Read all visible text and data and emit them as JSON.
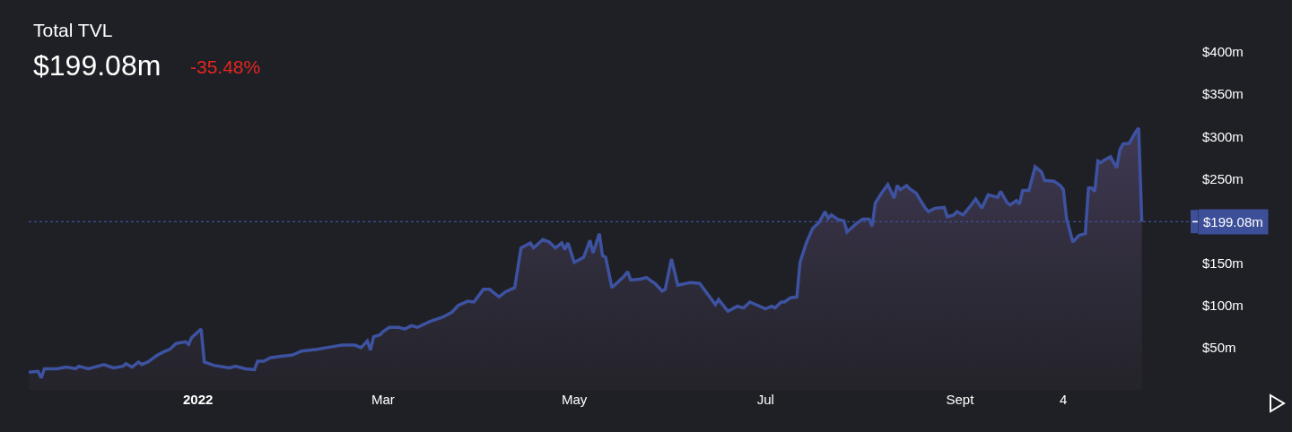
{
  "chart_data": {
    "type": "area",
    "title": "Total TVL",
    "subtitle": "$199.08m",
    "annotations": [
      "-35.48%"
    ],
    "x": [
      "2021-11-08",
      "2021-11-11",
      "2021-11-12",
      "2021-11-13",
      "2021-11-17",
      "2021-11-20",
      "2021-11-23",
      "2021-11-24",
      "2021-11-27",
      "2021-12-02",
      "2021-12-05",
      "2021-12-08",
      "2021-12-09",
      "2021-12-11",
      "2021-12-13",
      "2021-12-14",
      "2021-12-16",
      "2021-12-19",
      "2021-12-21",
      "2021-12-23",
      "2021-12-25",
      "2021-12-28",
      "2021-12-29",
      "2021-12-30",
      "2022-01-02",
      "2022-01-03",
      "2022-01-06",
      "2022-01-11",
      "2022-01-13",
      "2022-01-16",
      "2022-01-19",
      "2022-01-20",
      "2022-01-22",
      "2022-01-24",
      "2022-01-28",
      "2022-01-31",
      "2022-02-03",
      "2022-02-08",
      "2022-02-11",
      "2022-02-16",
      "2022-02-20",
      "2022-02-22",
      "2022-02-24",
      "2022-02-25",
      "2022-02-26",
      "2022-02-28",
      "2022-03-01",
      "2022-03-03",
      "2022-03-06",
      "2022-03-08",
      "2022-03-10",
      "2022-03-12",
      "2022-03-16",
      "2022-03-20",
      "2022-03-23",
      "2022-03-25",
      "2022-03-28",
      "2022-03-30",
      "2022-04-02",
      "2022-04-04",
      "2022-04-07",
      "2022-04-09",
      "2022-04-12",
      "2022-04-14",
      "2022-04-17",
      "2022-04-18",
      "2022-04-21",
      "2022-04-23",
      "2022-04-25",
      "2022-04-27",
      "2022-04-28",
      "2022-04-29",
      "2022-05-01",
      "2022-05-04",
      "2022-05-06",
      "2022-05-07",
      "2022-05-09",
      "2022-05-10",
      "2022-05-11",
      "2022-05-13",
      "2022-05-17",
      "2022-05-18",
      "2022-05-19",
      "2022-05-22",
      "2022-05-24",
      "2022-05-27",
      "2022-05-29",
      "2022-05-30",
      "2022-06-01",
      "2022-06-03",
      "2022-06-07",
      "2022-06-10",
      "2022-06-15",
      "2022-06-16",
      "2022-06-19",
      "2022-06-22",
      "2022-06-24",
      "2022-06-26",
      "2022-07-01",
      "2022-07-03",
      "2022-07-04",
      "2022-07-06",
      "2022-07-07",
      "2022-07-09",
      "2022-07-11",
      "2022-07-12",
      "2022-07-14",
      "2022-07-16",
      "2022-07-18",
      "2022-07-20",
      "2022-07-21",
      "2022-07-22",
      "2022-07-24",
      "2022-07-26",
      "2022-07-27",
      "2022-07-30",
      "2022-08-01",
      "2022-08-03",
      "2022-08-04",
      "2022-08-05",
      "2022-08-07",
      "2022-08-09",
      "2022-08-11",
      "2022-08-12",
      "2022-08-13",
      "2022-08-15",
      "2022-08-16",
      "2022-08-18",
      "2022-08-21",
      "2022-08-22",
      "2022-08-24",
      "2022-08-27",
      "2022-08-28",
      "2022-08-30",
      "2022-08-31",
      "2022-09-02",
      "2022-09-04",
      "2022-09-06",
      "2022-09-08",
      "2022-09-10",
      "2022-09-13",
      "2022-09-14",
      "2022-09-16",
      "2022-09-17",
      "2022-09-19",
      "2022-09-20",
      "2022-09-21",
      "2022-09-23",
      "2022-09-25",
      "2022-09-27",
      "2022-09-28",
      "2022-10-01",
      "2022-10-03",
      "2022-10-04",
      "2022-10-05",
      "2022-10-07",
      "2022-10-09",
      "2022-10-11",
      "2022-10-12",
      "2022-10-13",
      "2022-10-14",
      "2022-10-15",
      "2022-10-16",
      "2022-10-17",
      "2022-10-19",
      "2022-10-21",
      "2022-10-22",
      "2022-10-23",
      "2022-10-25",
      "2022-10-27",
      "2022-10-28",
      "2022-10-29"
    ],
    "series": [
      {
        "color": "#3d52a0",
        "values": [
          21,
          22,
          14,
          25,
          25,
          27,
          25,
          28,
          25,
          30,
          26,
          28,
          31,
          27,
          33,
          30,
          33,
          41,
          45,
          48,
          55,
          57,
          54,
          62,
          72,
          33,
          29,
          26,
          28,
          25,
          24,
          34,
          34,
          38,
          40,
          41,
          46,
          48,
          50,
          53,
          53,
          50,
          58,
          47,
          63,
          65,
          69,
          74,
          74,
          72,
          76,
          74,
          81,
          86,
          92,
          100,
          105,
          104,
          119,
          119,
          110,
          116,
          121,
          168,
          174,
          168,
          178,
          175,
          168,
          174,
          166,
          174,
          151,
          157,
          177,
          162,
          185,
          159,
          157,
          121,
          135,
          140,
          130,
          131,
          133,
          125,
          117,
          119,
          155,
          124,
          127,
          126,
          101,
          107,
          93,
          99,
          97,
          104,
          96,
          99,
          97,
          104,
          104,
          109,
          110,
          151,
          174,
          191,
          198,
          211,
          203,
          207,
          202,
          200,
          187,
          197,
          202,
          202,
          194,
          221,
          233,
          243,
          227,
          242,
          237,
          242,
          238,
          233,
          215,
          211,
          215,
          216,
          205,
          207,
          211,
          207,
          216,
          226,
          215,
          231,
          228,
          235,
          222,
          219,
          224,
          220,
          236,
          236,
          264,
          258,
          248,
          247,
          242,
          237,
          203,
          175,
          183,
          185,
          239,
          239,
          235,
          271,
          269,
          272,
          276,
          263,
          284,
          291,
          292,
          305,
          310,
          199.08
        ]
      }
    ],
    "xlim": [
      "2021-11-08",
      "2022-11-13"
    ],
    "xticks": [
      {
        "value": "2022-01-01",
        "label": "2022"
      },
      {
        "value": "2022-03-01",
        "label": "Mar"
      },
      {
        "value": "2022-05-01",
        "label": "May"
      },
      {
        "value": "2022-07-01",
        "label": "Jul"
      },
      {
        "value": "2022-09-01",
        "label": "Sept"
      },
      {
        "value": "2022-10-04",
        "label": "4"
      }
    ],
    "ylim": [
      0,
      400
    ],
    "yticks": [
      {
        "value": 50,
        "label": "$50m"
      },
      {
        "value": 100,
        "label": "$100m"
      },
      {
        "value": 150,
        "label": "$150m"
      },
      {
        "value": 250,
        "label": "$250m"
      },
      {
        "value": 300,
        "label": "$300m"
      },
      {
        "value": 350,
        "label": "$350m"
      },
      {
        "value": 400,
        "label": "$400m"
      }
    ],
    "ref_lines": [
      {
        "axis": "y",
        "value": 199.08,
        "label": "$199.08m",
        "color": "#3d4f99",
        "line_style": "dotted"
      }
    ],
    "grid": false,
    "legend": false
  }
}
